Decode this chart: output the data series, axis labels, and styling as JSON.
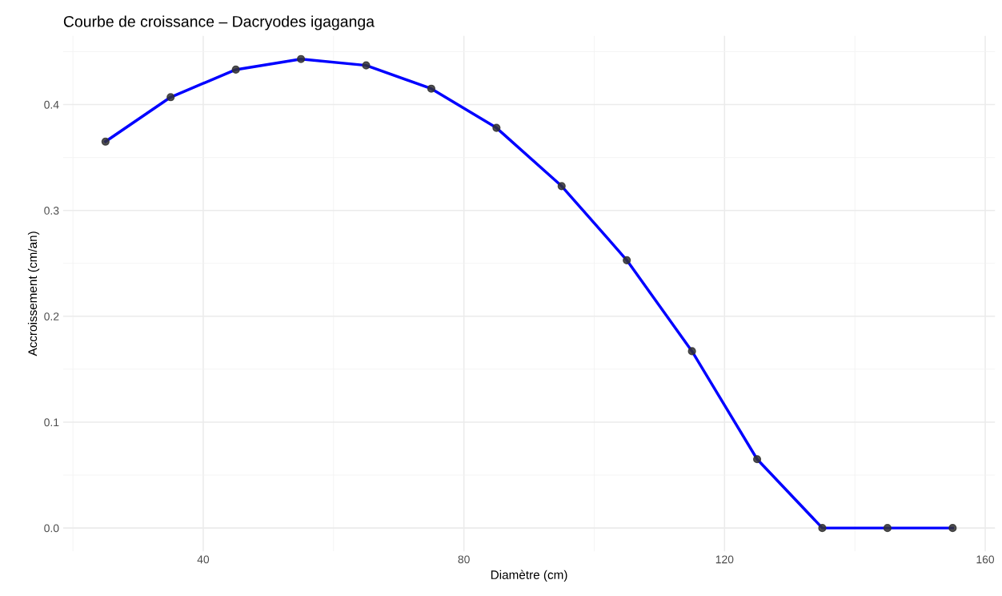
{
  "chart_data": {
    "type": "line",
    "title": "Courbe de croissance – Dacryodes igaganga",
    "xlabel": "Diamètre (cm)",
    "ylabel": "Accroissement (cm/an)",
    "x": [
      25,
      35,
      45,
      55,
      65,
      75,
      85,
      95,
      105,
      115,
      125,
      135,
      145,
      155
    ],
    "series": [
      {
        "color": "#0000ff",
        "marker": "none",
        "values": [
          0.365,
          0.407,
          0.433,
          0.443,
          0.437,
          0.415,
          0.378,
          0.323,
          0.253,
          0.167,
          0.065,
          0.0,
          0.0,
          0.0
        ]
      },
      {
        "type": "scatter",
        "color": "#333333",
        "marker": "circle",
        "values": [
          0.365,
          0.407,
          0.433,
          0.443,
          0.437,
          0.415,
          0.378,
          0.323,
          0.253,
          0.167,
          0.065,
          0.0,
          0.0,
          0.0
        ]
      }
    ],
    "xlim": [
      18.5,
      161.5
    ],
    "xticks": [
      40,
      80,
      120,
      160
    ],
    "ylim": [
      -0.022,
      0.465
    ],
    "yticks": [
      {
        "value": 0,
        "label": "0.0"
      },
      0.1,
      0.2,
      0.3,
      0.4
    ],
    "grid": true
  }
}
